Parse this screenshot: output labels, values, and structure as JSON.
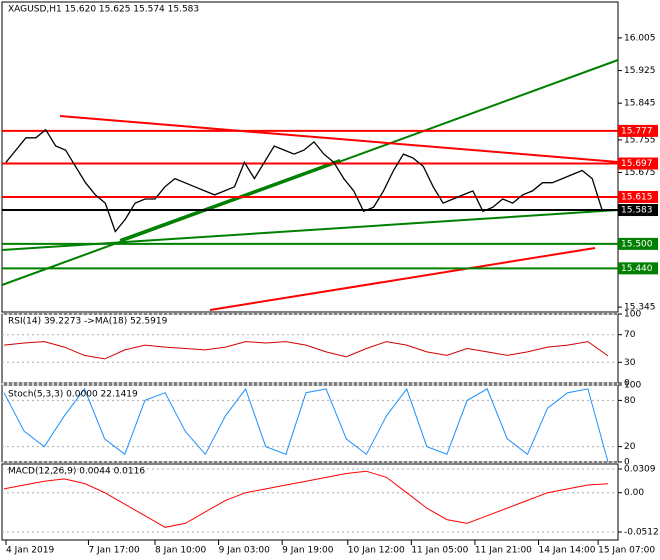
{
  "chart_data": [
    {
      "type": "line",
      "title": "XAGUSD,H1  15.620 15.625 15.574 15.583",
      "color": "#000000",
      "x": [
        0,
        1,
        2,
        3,
        4,
        5,
        6,
        7,
        8,
        9,
        10,
        11,
        12,
        13,
        14,
        15,
        16,
        17,
        18,
        19,
        20,
        21,
        22,
        23,
        24,
        25,
        26,
        27,
        28,
        29,
        30,
        31,
        32,
        33,
        34,
        35,
        36,
        37,
        38,
        39,
        40,
        41,
        42,
        43,
        44,
        45,
        46,
        47,
        48,
        49,
        50,
        51,
        52,
        53,
        54,
        55,
        56,
        57,
        58,
        59,
        60
      ],
      "values": [
        15.7,
        15.73,
        15.76,
        15.76,
        15.78,
        15.74,
        15.73,
        15.69,
        15.65,
        15.62,
        15.6,
        15.53,
        15.56,
        15.6,
        15.61,
        15.61,
        15.64,
        15.66,
        15.65,
        15.64,
        15.63,
        15.62,
        15.63,
        15.64,
        15.7,
        15.66,
        15.7,
        15.74,
        15.73,
        15.72,
        15.73,
        15.75,
        15.72,
        15.7,
        15.66,
        15.63,
        15.58,
        15.59,
        15.63,
        15.68,
        15.72,
        15.71,
        15.69,
        15.64,
        15.6,
        15.61,
        15.62,
        15.63,
        15.58,
        15.59,
        15.61,
        15.6,
        15.62,
        15.63,
        15.65,
        15.65,
        15.66,
        15.67,
        15.68,
        15.66,
        15.583
      ],
      "xlim": [
        -0.2,
        61.4
      ],
      "xticks": [
        {
          "value": 0,
          "label": "4 Jan 2019"
        },
        {
          "value": 8.3,
          "label": "7 Jan 17:00"
        },
        {
          "value": 15,
          "label": "8 Jan 10:00"
        },
        {
          "value": 21.4,
          "label": "9 Jan 03:00"
        },
        {
          "value": 27.8,
          "label": "9 Jan 19:00"
        },
        {
          "value": 34.4,
          "label": "10 Jan 12:00"
        },
        {
          "value": 40.8,
          "label": "11 Jan 05:00"
        },
        {
          "value": 47.2,
          "label": "11 Jan 21:00"
        },
        {
          "value": 53.6,
          "label": "14 Jan 14:00"
        },
        {
          "value": 59.6,
          "label": "15 Jan 07:00"
        }
      ],
      "ylim": [
        15.333,
        16.093
      ],
      "yticks": [
        16.005,
        15.925,
        15.845,
        15.755,
        15.675,
        15.345
      ],
      "levels": [
        {
          "value": 15.777,
          "label": "15.777",
          "color": "#ff0000"
        },
        {
          "value": 15.697,
          "label": "15.697",
          "color": "#ff0000"
        },
        {
          "value": 15.615,
          "label": "15.615",
          "color": "#ff0000"
        },
        {
          "value": 15.583,
          "label": "15.583",
          "color": "#000000"
        },
        {
          "value": 15.5,
          "label": "15.500",
          "color": "#008000"
        },
        {
          "value": 15.44,
          "label": "15.440",
          "color": "#008000"
        }
      ]
    },
    {
      "type": "line",
      "title": "RSI(14) 39.2273  ->MA(18) 52.5919",
      "color": "#d00000",
      "values": [
        55,
        58,
        60,
        52,
        40,
        35,
        48,
        55,
        52,
        50,
        48,
        52,
        60,
        58,
        60,
        55,
        45,
        38,
        50,
        60,
        55,
        45,
        40,
        50,
        45,
        40,
        45,
        52,
        55,
        60,
        39.2273
      ],
      "ylim": [
        0,
        100
      ],
      "yticks": [
        100,
        70,
        30,
        0
      ]
    },
    {
      "type": "line",
      "title": "Stoch(5,3,3) 0.0000 22.1419",
      "color": "#1e90ff",
      "values": [
        90,
        40,
        20,
        60,
        95,
        30,
        10,
        80,
        90,
        40,
        10,
        60,
        95,
        20,
        10,
        90,
        95,
        30,
        10,
        60,
        95,
        20,
        10,
        80,
        95,
        30,
        10,
        70,
        90,
        95,
        0
      ],
      "ylim": [
        0,
        100
      ],
      "yticks": [
        100,
        80,
        20,
        0
      ]
    },
    {
      "type": "line",
      "title": "MACD(12,26,9) 0.0044 0.0116",
      "color": "#ff0000",
      "values": [
        0.005,
        0.01,
        0.015,
        0.018,
        0.012,
        0.0,
        -0.015,
        -0.03,
        -0.045,
        -0.04,
        -0.025,
        -0.01,
        0.0,
        0.005,
        0.01,
        0.015,
        0.02,
        0.025,
        0.028,
        0.02,
        0.0,
        -0.02,
        -0.035,
        -0.04,
        -0.03,
        -0.02,
        -0.01,
        0.0,
        0.005,
        0.01,
        0.0116
      ],
      "ylim": [
        -0.0616,
        0.0374
      ],
      "yticks": [
        0.0309,
        {
          "value": 0,
          "label": "0.00"
        },
        -0.0512
      ]
    }
  ]
}
